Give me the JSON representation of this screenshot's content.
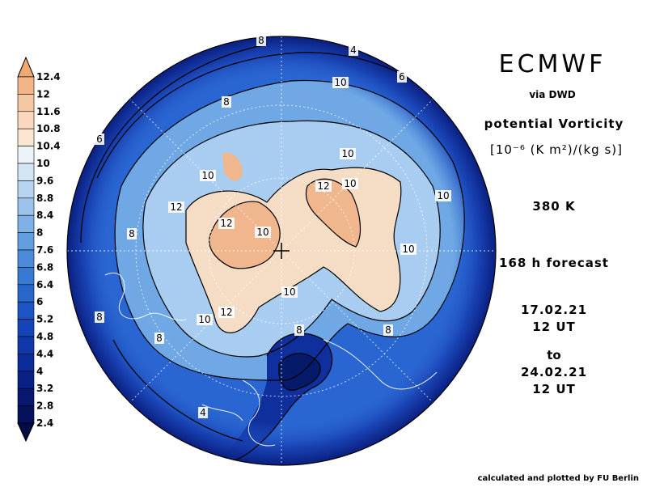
{
  "header": {
    "brand": "ECMWF",
    "source": "via DWD",
    "quantity": "potential Vorticity",
    "unit": "[10⁻⁶ (K m²)/(kg s)]",
    "level": "380 K",
    "lead_time": "168 h forecast",
    "init_date": "17.02.21",
    "init_time": "12 UT",
    "to_word": "to",
    "valid_date": "24.02.21",
    "valid_time": "12 UT"
  },
  "footer": {
    "credit": "calculated and plotted by FU Berlin"
  },
  "colorbar": {
    "levels": [
      "12.4",
      "12",
      "11.6",
      "10.8",
      "10.4",
      "10",
      "9.6",
      "8.8",
      "8.4",
      "8",
      "7.6",
      "6.8",
      "6.4",
      "6",
      "5.2",
      "4.8",
      "4.4",
      "4",
      "3.2",
      "2.8",
      "2.4"
    ],
    "colors": [
      "#f2b58a",
      "#f6c7a4",
      "#f9d8bd",
      "#fbe6d2",
      "#eef3f8",
      "#d3e4f5",
      "#b8d4f1",
      "#9cc3ec",
      "#7fb1e6",
      "#629ee0",
      "#4a8bda",
      "#3879d4",
      "#2866cc",
      "#1c55c3",
      "#1445b8",
      "#0f38aa",
      "#0b2c99",
      "#082186",
      "#061870",
      "#05115a"
    ],
    "top_color": "#f2a873",
    "bottom_color": "#040b45"
  },
  "map": {
    "background_color": "#2a66d2",
    "contour_labels": [
      {
        "value": "8"
      },
      {
        "value": "4"
      },
      {
        "value": "6"
      },
      {
        "value": "8"
      },
      {
        "value": "10"
      },
      {
        "value": "6"
      },
      {
        "value": "10"
      },
      {
        "value": "10"
      },
      {
        "value": "12"
      },
      {
        "value": "10"
      },
      {
        "value": "10"
      },
      {
        "value": "12"
      },
      {
        "value": "12"
      },
      {
        "value": "8"
      },
      {
        "value": "10"
      },
      {
        "value": "10"
      },
      {
        "value": "12"
      },
      {
        "value": "10"
      },
      {
        "value": "8"
      },
      {
        "value": "8"
      },
      {
        "value": "10"
      },
      {
        "value": "8"
      },
      {
        "value": "8"
      },
      {
        "value": "4"
      }
    ]
  }
}
